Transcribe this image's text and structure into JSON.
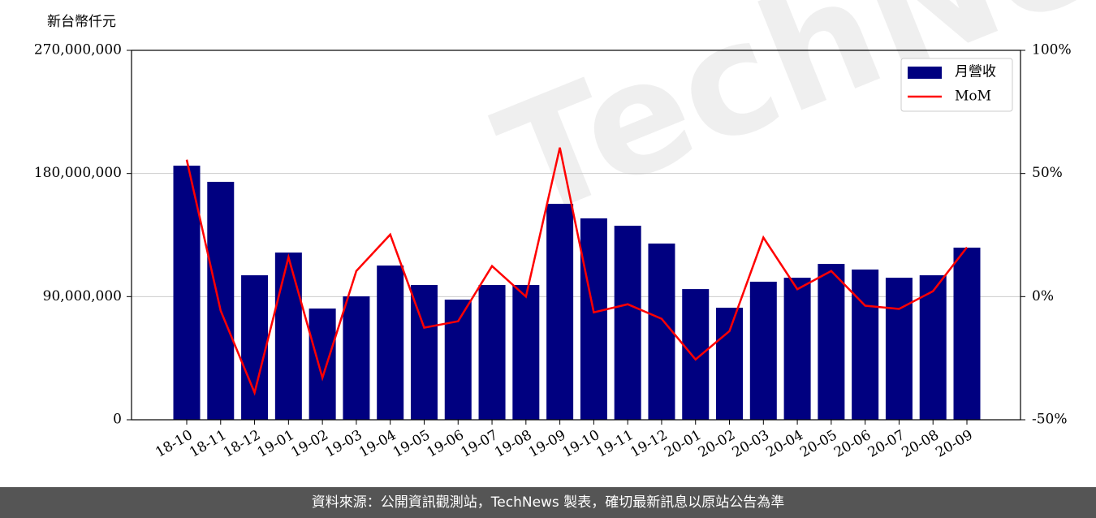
{
  "chart_data": {
    "type": "bar",
    "unit_label": "新台幣仟元",
    "watermark": "TechNews",
    "footer": "資料來源：公開資訊觀測站，TechNews 製表，確切最新訊息以原站公告為準",
    "categories": [
      "18-10",
      "18-11",
      "18-12",
      "19-01",
      "19-02",
      "19-03",
      "19-04",
      "19-05",
      "19-06",
      "19-07",
      "19-08",
      "19-09",
      "19-10",
      "19-11",
      "19-12",
      "20-01",
      "20-02",
      "20-03",
      "20-04",
      "20-05",
      "20-06",
      "20-07",
      "20-08",
      "20-09"
    ],
    "series": [
      {
        "name": "月營收",
        "type": "bar",
        "color": "#000080",
        "values": [
          185700000,
          173900000,
          105600000,
          122200000,
          81300000,
          90200000,
          112700000,
          98500000,
          87800000,
          98500000,
          98500000,
          157800000,
          147200000,
          141800000,
          128800000,
          95500000,
          81900000,
          100900000,
          103800000,
          113900000,
          109800000,
          103800000,
          105600000,
          125800000
        ]
      },
      {
        "name": "MoM",
        "type": "line",
        "axis": "y2",
        "color": "#ff0000",
        "values": [
          55.6,
          -5.7,
          -39,
          16,
          -33,
          10.4,
          25.2,
          -12.6,
          -10,
          12.4,
          0,
          60.5,
          -6.4,
          -3.1,
          -9,
          -25.5,
          -14,
          24,
          3,
          10.4,
          -3.7,
          -5,
          2.2,
          20
        ]
      }
    ],
    "ylim": [
      0,
      270000000
    ],
    "yticks": [
      0,
      {
        "value": 90000000,
        "label": "90,000,000"
      },
      {
        "value": 180000000,
        "label": "180,000,000"
      },
      {
        "value": 270000000,
        "label": "270,000,000"
      }
    ],
    "y2lim": [
      -50,
      100
    ],
    "y2ticks": [
      {
        "value": -50,
        "label": "-50%"
      },
      {
        "value": 0,
        "label": "0%"
      },
      {
        "value": 50,
        "label": "50%"
      },
      {
        "value": 100,
        "label": "100%"
      }
    ],
    "grid": true,
    "legend": "upper right"
  }
}
